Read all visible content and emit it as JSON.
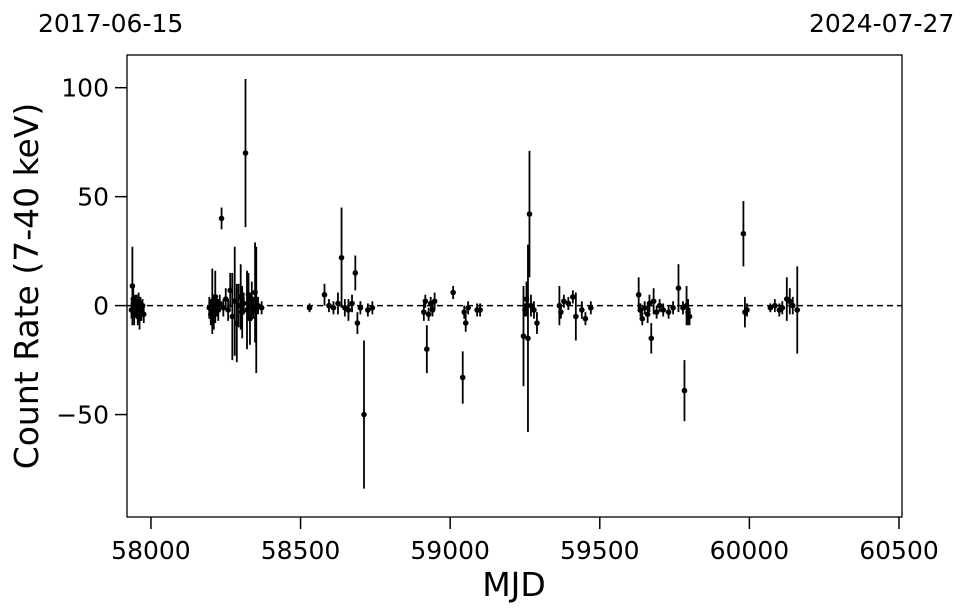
{
  "chart_data": {
    "type": "scatter",
    "title": "",
    "xlabel": "MJD",
    "ylabel": "Count Rate (7-40 keV)",
    "date_start": "2017-06-15",
    "date_end": "2024-07-27",
    "xlim": [
      57920,
      60510
    ],
    "ylim": [
      -97,
      115
    ],
    "x_ticks": [
      58000,
      58500,
      59000,
      59500,
      60000,
      60500
    ],
    "y_ticks": [
      -50,
      0,
      50,
      100
    ],
    "y_tick_labels": [
      "−50",
      "0",
      "50",
      "100"
    ],
    "reference_line": {
      "y": 0,
      "style": "dashed"
    },
    "grid": false,
    "legend": "none",
    "marker_color": "#000000",
    "series": [
      {
        "points": [
          {
            "x": 57935,
            "y": -2,
            "err": 4
          },
          {
            "x": 57938,
            "y": 9,
            "err": 18
          },
          {
            "x": 57941,
            "y": 3,
            "err": 5
          },
          {
            "x": 57944,
            "y": -4,
            "err": 5
          },
          {
            "x": 57947,
            "y": 1,
            "err": 4
          },
          {
            "x": 57950,
            "y": -1,
            "err": 4
          },
          {
            "x": 57953,
            "y": 0,
            "err": 5
          },
          {
            "x": 57956,
            "y": -5,
            "err": 4
          },
          {
            "x": 57959,
            "y": 2,
            "err": 4
          },
          {
            "x": 57962,
            "y": -6,
            "err": 5
          },
          {
            "x": 57965,
            "y": 1,
            "err": 3
          },
          {
            "x": 57968,
            "y": -3,
            "err": 4
          },
          {
            "x": 57972,
            "y": 0,
            "err": 3
          },
          {
            "x": 57976,
            "y": -4,
            "err": 4
          },
          {
            "x": 58195,
            "y": -1,
            "err": 5
          },
          {
            "x": 58200,
            "y": -4,
            "err": 5
          },
          {
            "x": 58205,
            "y": 2,
            "err": 15
          },
          {
            "x": 58210,
            "y": -3,
            "err": 8
          },
          {
            "x": 58215,
            "y": 4,
            "err": 12
          },
          {
            "x": 58220,
            "y": 0,
            "err": 5
          },
          {
            "x": 58225,
            "y": -2,
            "err": 5
          },
          {
            "x": 58230,
            "y": 1,
            "err": 4
          },
          {
            "x": 58236,
            "y": 40,
            "err": 5
          },
          {
            "x": 58242,
            "y": -1,
            "err": 4
          },
          {
            "x": 58250,
            "y": 3,
            "err": 5
          },
          {
            "x": 58258,
            "y": -2,
            "err": 5
          },
          {
            "x": 58265,
            "y": 7,
            "err": 8
          },
          {
            "x": 58272,
            "y": -5,
            "err": 20
          },
          {
            "x": 58280,
            "y": 2,
            "err": 25
          },
          {
            "x": 58287,
            "y": -8,
            "err": 18
          },
          {
            "x": 58293,
            "y": 0,
            "err": 10
          },
          {
            "x": 58300,
            "y": 4,
            "err": 15
          },
          {
            "x": 58305,
            "y": -3,
            "err": 12
          },
          {
            "x": 58310,
            "y": 1,
            "err": 5
          },
          {
            "x": 58316,
            "y": 70,
            "err": 34
          },
          {
            "x": 58321,
            "y": -2,
            "err": 18
          },
          {
            "x": 58326,
            "y": 5,
            "err": 10
          },
          {
            "x": 58331,
            "y": -6,
            "err": 12
          },
          {
            "x": 58337,
            "y": 3,
            "err": 8
          },
          {
            "x": 58342,
            "y": -1,
            "err": 5
          },
          {
            "x": 58348,
            "y": 6,
            "err": 23
          },
          {
            "x": 58352,
            "y": -2,
            "err": 29
          },
          {
            "x": 58358,
            "y": 0,
            "err": 4
          },
          {
            "x": 58370,
            "y": -1,
            "err": 3
          },
          {
            "x": 58530,
            "y": -1,
            "err": 2
          },
          {
            "x": 58580,
            "y": 5,
            "err": 5
          },
          {
            "x": 58595,
            "y": 0,
            "err": 3
          },
          {
            "x": 58610,
            "y": -1,
            "err": 3
          },
          {
            "x": 58625,
            "y": 1,
            "err": 5
          },
          {
            "x": 58637,
            "y": 22,
            "err": 23
          },
          {
            "x": 58648,
            "y": -1,
            "err": 4
          },
          {
            "x": 58660,
            "y": -2,
            "err": 5
          },
          {
            "x": 58672,
            "y": 1,
            "err": 4
          },
          {
            "x": 58683,
            "y": 15,
            "err": 8
          },
          {
            "x": 58690,
            "y": -8,
            "err": 5
          },
          {
            "x": 58700,
            "y": -1,
            "err": 3
          },
          {
            "x": 58712,
            "y": -50,
            "err": 34
          },
          {
            "x": 58725,
            "y": -2,
            "err": 3
          },
          {
            "x": 58740,
            "y": -1,
            "err": 3
          },
          {
            "x": 58912,
            "y": -3,
            "err": 4
          },
          {
            "x": 58917,
            "y": 2,
            "err": 3
          },
          {
            "x": 58922,
            "y": -20,
            "err": 11
          },
          {
            "x": 58928,
            "y": -4,
            "err": 3
          },
          {
            "x": 58935,
            "y": 1,
            "err": 3
          },
          {
            "x": 58941,
            "y": -2,
            "err": 3
          },
          {
            "x": 58948,
            "y": 2,
            "err": 4
          },
          {
            "x": 59010,
            "y": 6,
            "err": 3
          },
          {
            "x": 59042,
            "y": -33,
            "err": 12
          },
          {
            "x": 59047,
            "y": -3,
            "err": 3
          },
          {
            "x": 59052,
            "y": -8,
            "err": 4
          },
          {
            "x": 59060,
            "y": -1,
            "err": 3
          },
          {
            "x": 59090,
            "y": -2,
            "err": 3
          },
          {
            "x": 59100,
            "y": -2,
            "err": 3
          },
          {
            "x": 59245,
            "y": -14,
            "err": 23
          },
          {
            "x": 59250,
            "y": -2,
            "err": 3
          },
          {
            "x": 59255,
            "y": 3,
            "err": 8
          },
          {
            "x": 59260,
            "y": -15,
            "err": 43
          },
          {
            "x": 59265,
            "y": 42,
            "err": 29
          },
          {
            "x": 59270,
            "y": 0,
            "err": 5
          },
          {
            "x": 59280,
            "y": -2,
            "err": 4
          },
          {
            "x": 59290,
            "y": -8,
            "err": 5
          },
          {
            "x": 59365,
            "y": 0,
            "err": 9
          },
          {
            "x": 59370,
            "y": -3,
            "err": 3
          },
          {
            "x": 59380,
            "y": 2,
            "err": 3
          },
          {
            "x": 59395,
            "y": 1,
            "err": 3
          },
          {
            "x": 59410,
            "y": 4,
            "err": 3
          },
          {
            "x": 59420,
            "y": -5,
            "err": 11
          },
          {
            "x": 59440,
            "y": -2,
            "err": 4
          },
          {
            "x": 59452,
            "y": -6,
            "err": 3
          },
          {
            "x": 59470,
            "y": -1,
            "err": 3
          },
          {
            "x": 59630,
            "y": 5,
            "err": 8
          },
          {
            "x": 59636,
            "y": -2,
            "err": 3
          },
          {
            "x": 59642,
            "y": -6,
            "err": 3
          },
          {
            "x": 59650,
            "y": -1,
            "err": 3
          },
          {
            "x": 59660,
            "y": -4,
            "err": 4
          },
          {
            "x": 59666,
            "y": 1,
            "err": 4
          },
          {
            "x": 59672,
            "y": -15,
            "err": 7
          },
          {
            "x": 59680,
            "y": 2,
            "err": 6
          },
          {
            "x": 59690,
            "y": -3,
            "err": 3
          },
          {
            "x": 59700,
            "y": 0,
            "err": 3
          },
          {
            "x": 59712,
            "y": -2,
            "err": 3
          },
          {
            "x": 59730,
            "y": -3,
            "err": 3
          },
          {
            "x": 59745,
            "y": -1,
            "err": 3
          },
          {
            "x": 59763,
            "y": 8,
            "err": 11
          },
          {
            "x": 59778,
            "y": -1,
            "err": 3
          },
          {
            "x": 59783,
            "y": -39,
            "err": 14
          },
          {
            "x": 59790,
            "y": 0,
            "err": 9
          },
          {
            "x": 59795,
            "y": -3,
            "err": 6
          },
          {
            "x": 59800,
            "y": -5,
            "err": 4
          },
          {
            "x": 59980,
            "y": 33,
            "err": 15
          },
          {
            "x": 59985,
            "y": -3,
            "err": 7
          },
          {
            "x": 59992,
            "y": -2,
            "err": 3
          },
          {
            "x": 60070,
            "y": -1,
            "err": 2
          },
          {
            "x": 60085,
            "y": 0,
            "err": 3
          },
          {
            "x": 60100,
            "y": -2,
            "err": 3
          },
          {
            "x": 60110,
            "y": -1,
            "err": 3
          },
          {
            "x": 60125,
            "y": 3,
            "err": 10
          },
          {
            "x": 60135,
            "y": 2,
            "err": 6
          },
          {
            "x": 60145,
            "y": 0,
            "err": 4
          },
          {
            "x": 60160,
            "y": -2,
            "err": 20
          }
        ]
      }
    ]
  }
}
